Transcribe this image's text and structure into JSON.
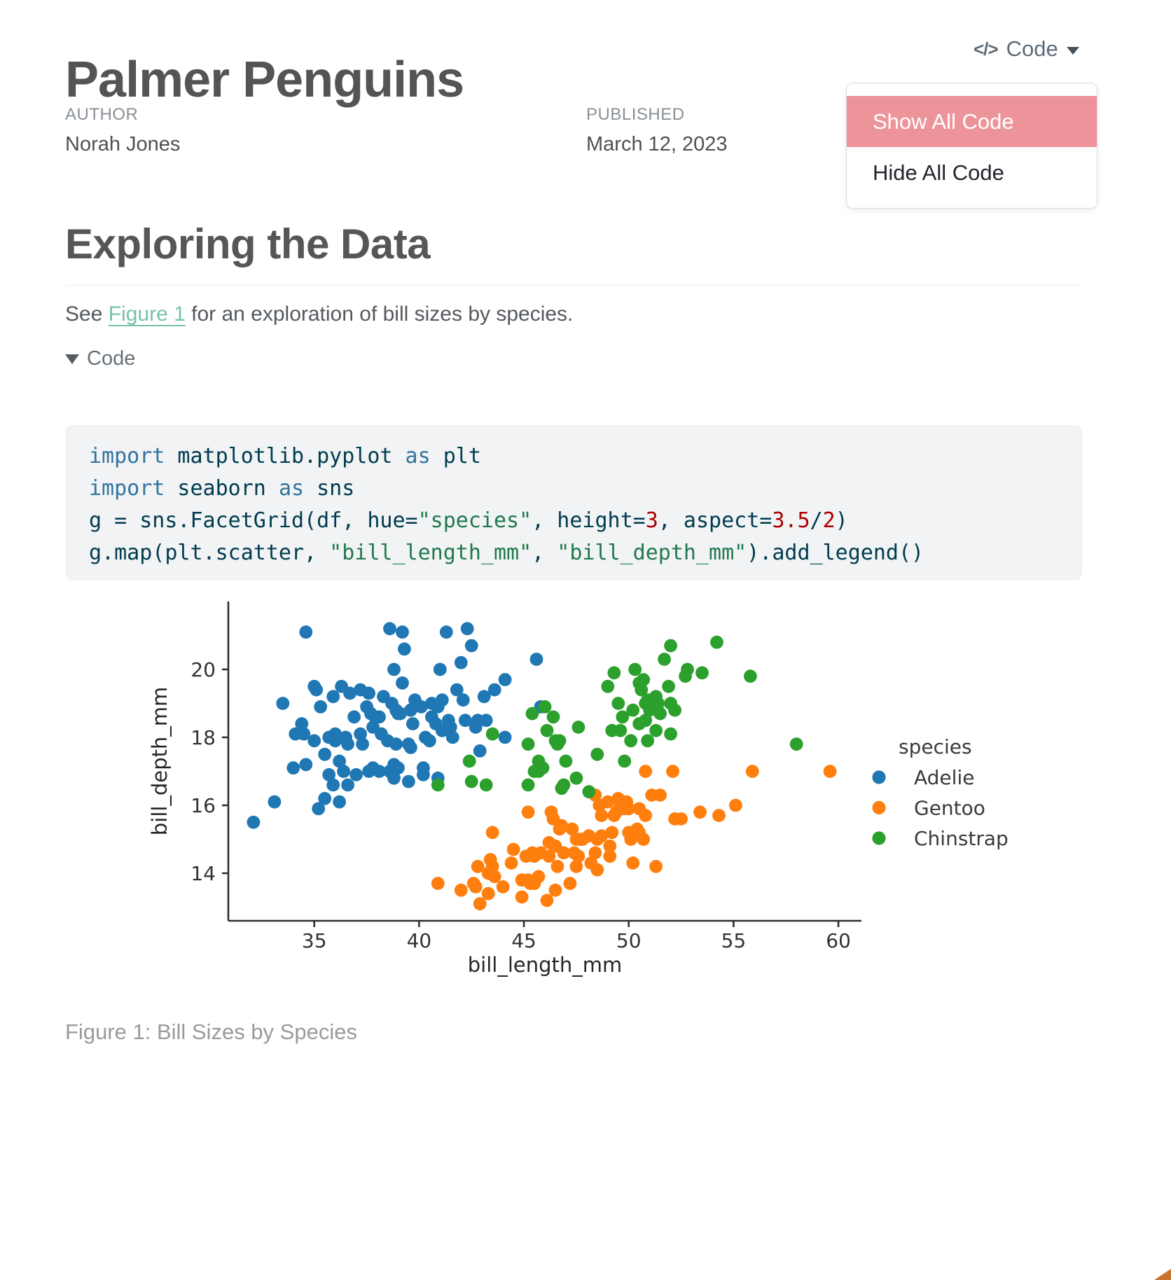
{
  "header": {
    "title": "Palmer Penguins",
    "code_menu": {
      "icon": "</>",
      "label": "Code",
      "items": [
        {
          "label": "Show All Code",
          "active": true
        },
        {
          "label": "Hide All Code",
          "active": false
        }
      ]
    },
    "meta": [
      {
        "label": "AUTHOR",
        "value": "Norah Jones"
      },
      {
        "label": "PUBLISHED",
        "value": "March 12, 2023"
      }
    ]
  },
  "section": {
    "heading": "Exploring the Data"
  },
  "paragraph": {
    "pre": "See ",
    "link": "Figure 1",
    "post": " for an exploration of bill sizes by species."
  },
  "code_fold": {
    "label": "Code"
  },
  "code_block": {
    "syntax": {
      "base": "#003B4F",
      "kw": "#33749F",
      "str": "#20794D",
      "num": "#AD0000"
    },
    "lines": [
      [
        {
          "t": "import",
          "c": "kw"
        },
        {
          "t": " matplotlib.pyplot ",
          "c": ""
        },
        {
          "t": "as",
          "c": "kw"
        },
        {
          "t": " plt",
          "c": ""
        }
      ],
      [
        {
          "t": "import",
          "c": "kw"
        },
        {
          "t": " seaborn ",
          "c": ""
        },
        {
          "t": "as",
          "c": "kw"
        },
        {
          "t": " sns",
          "c": ""
        }
      ],
      [
        {
          "t": "g = sns.FacetGrid(df, hue=",
          "c": ""
        },
        {
          "t": "\"species\"",
          "c": "str"
        },
        {
          "t": ", height=",
          "c": ""
        },
        {
          "t": "3",
          "c": "num"
        },
        {
          "t": ", aspect=",
          "c": ""
        },
        {
          "t": "3.5",
          "c": "num"
        },
        {
          "t": "/",
          "c": ""
        },
        {
          "t": "2",
          "c": "num"
        },
        {
          "t": ")",
          "c": ""
        }
      ],
      [
        {
          "t": "g.map(plt.scatter, ",
          "c": ""
        },
        {
          "t": "\"bill_length_mm\"",
          "c": "str"
        },
        {
          "t": ", ",
          "c": ""
        },
        {
          "t": "\"bill_depth_mm\"",
          "c": "str"
        },
        {
          "t": ").add_legend()",
          "c": ""
        }
      ]
    ]
  },
  "figure": {
    "caption": "Figure 1: Bill Sizes by Species"
  },
  "colors": {
    "link": "#78c2ad",
    "menu_item_active_bg": "#ED949A",
    "menu_item_active_text": "#ffffff",
    "code_block_bg": "#f1f3f4",
    "corner_graphic": "#c9742f",
    "adelie": "#1f77b4",
    "gentoo": "#ff7f0e",
    "chinstrap": "#2ca02c"
  },
  "chart_data": {
    "type": "scatter",
    "xlabel": "bill_length_mm",
    "ylabel": "bill_depth_mm",
    "xlim": [
      30.9,
      61.1
    ],
    "ylim": [
      12.6,
      22.0
    ],
    "xticks": [
      35,
      40,
      45,
      50,
      55,
      60
    ],
    "yticks": [
      14,
      16,
      18,
      20
    ],
    "grid": false,
    "legend_title": "species",
    "legend_position": "right",
    "series": [
      {
        "name": "Adelie",
        "color": "#1f77b4",
        "points": [
          [
            32.1,
            15.5
          ],
          [
            33.1,
            16.1
          ],
          [
            33.5,
            19.0
          ],
          [
            34.0,
            17.1
          ],
          [
            34.1,
            18.1
          ],
          [
            34.4,
            18.4
          ],
          [
            34.5,
            18.1
          ],
          [
            34.6,
            21.1
          ],
          [
            34.6,
            17.2
          ],
          [
            35.0,
            19.5
          ],
          [
            35.0,
            17.9
          ],
          [
            35.1,
            19.4
          ],
          [
            35.2,
            15.9
          ],
          [
            35.3,
            18.9
          ],
          [
            35.5,
            16.2
          ],
          [
            35.5,
            17.5
          ],
          [
            35.7,
            18.0
          ],
          [
            35.7,
            16.9
          ],
          [
            35.9,
            16.6
          ],
          [
            35.9,
            19.2
          ],
          [
            36.0,
            17.9
          ],
          [
            36.0,
            18.1
          ],
          [
            36.2,
            16.1
          ],
          [
            36.2,
            17.3
          ],
          [
            36.3,
            19.5
          ],
          [
            36.4,
            17.0
          ],
          [
            36.5,
            18.0
          ],
          [
            36.6,
            17.8
          ],
          [
            36.7,
            19.3
          ],
          [
            36.9,
            18.6
          ],
          [
            37.0,
            16.9
          ],
          [
            37.2,
            18.1
          ],
          [
            37.2,
            19.4
          ],
          [
            37.3,
            17.8
          ],
          [
            37.5,
            18.9
          ],
          [
            37.6,
            19.3
          ],
          [
            37.7,
            18.7
          ],
          [
            37.8,
            17.1
          ],
          [
            37.8,
            18.3
          ],
          [
            37.9,
            18.6
          ],
          [
            38.1,
            18.6
          ],
          [
            38.1,
            17.0
          ],
          [
            38.2,
            18.1
          ],
          [
            38.3,
            19.2
          ],
          [
            38.5,
            17.9
          ],
          [
            38.6,
            21.2
          ],
          [
            38.6,
            17.0
          ],
          [
            38.7,
            19.0
          ],
          [
            38.8,
            17.2
          ],
          [
            38.8,
            20.0
          ],
          [
            38.9,
            17.8
          ],
          [
            38.9,
            18.8
          ],
          [
            39.0,
            18.7
          ],
          [
            39.0,
            17.1
          ],
          [
            39.1,
            18.7
          ],
          [
            39.2,
            19.6
          ],
          [
            39.2,
            21.1
          ],
          [
            39.3,
            20.6
          ],
          [
            39.5,
            16.7
          ],
          [
            39.5,
            17.8
          ],
          [
            39.6,
            17.7
          ],
          [
            39.6,
            18.8
          ],
          [
            39.7,
            18.4
          ],
          [
            39.8,
            19.1
          ],
          [
            40.1,
            18.9
          ],
          [
            40.2,
            17.1
          ],
          [
            40.3,
            18.0
          ],
          [
            40.5,
            17.9
          ],
          [
            40.6,
            18.6
          ],
          [
            40.6,
            19.0
          ],
          [
            40.8,
            18.4
          ],
          [
            40.9,
            16.8
          ],
          [
            40.9,
            18.9
          ],
          [
            41.0,
            20.0
          ],
          [
            41.1,
            18.2
          ],
          [
            41.1,
            19.1
          ],
          [
            41.3,
            21.1
          ],
          [
            41.4,
            18.5
          ],
          [
            41.5,
            18.3
          ],
          [
            41.6,
            18.0
          ],
          [
            41.8,
            19.4
          ],
          [
            42.0,
            20.2
          ],
          [
            42.1,
            19.1
          ],
          [
            42.2,
            18.5
          ],
          [
            42.3,
            21.2
          ],
          [
            42.5,
            20.7
          ],
          [
            42.7,
            18.3
          ],
          [
            42.8,
            18.5
          ],
          [
            42.9,
            17.6
          ],
          [
            43.1,
            19.2
          ],
          [
            43.2,
            18.5
          ],
          [
            43.6,
            19.4
          ],
          [
            44.1,
            19.7
          ],
          [
            44.1,
            18.0
          ],
          [
            45.6,
            20.3
          ],
          [
            45.8,
            18.9
          ],
          [
            36.6,
            16.6
          ],
          [
            37.6,
            17.0
          ],
          [
            38.8,
            16.8
          ],
          [
            40.2,
            16.9
          ]
        ]
      },
      {
        "name": "Gentoo",
        "color": "#ff7f0e",
        "points": [
          [
            40.9,
            13.7
          ],
          [
            42.0,
            13.5
          ],
          [
            42.6,
            13.7
          ],
          [
            42.7,
            13.6
          ],
          [
            42.8,
            14.2
          ],
          [
            42.9,
            13.1
          ],
          [
            43.3,
            13.4
          ],
          [
            43.3,
            14.0
          ],
          [
            43.4,
            14.4
          ],
          [
            43.5,
            14.2
          ],
          [
            43.5,
            15.2
          ],
          [
            43.6,
            13.9
          ],
          [
            44.0,
            13.6
          ],
          [
            44.4,
            14.3
          ],
          [
            44.5,
            14.7
          ],
          [
            44.9,
            13.3
          ],
          [
            44.9,
            13.8
          ],
          [
            45.1,
            14.5
          ],
          [
            45.2,
            15.8
          ],
          [
            45.2,
            13.8
          ],
          [
            45.3,
            13.7
          ],
          [
            45.4,
            14.6
          ],
          [
            45.5,
            14.5
          ],
          [
            45.5,
            13.7
          ],
          [
            45.7,
            13.9
          ],
          [
            45.8,
            14.6
          ],
          [
            46.1,
            13.2
          ],
          [
            46.2,
            14.5
          ],
          [
            46.2,
            14.9
          ],
          [
            46.3,
            15.8
          ],
          [
            46.4,
            15.6
          ],
          [
            46.5,
            13.5
          ],
          [
            46.5,
            14.8
          ],
          [
            46.6,
            14.2
          ],
          [
            46.7,
            15.3
          ],
          [
            46.8,
            15.4
          ],
          [
            46.9,
            14.6
          ],
          [
            47.2,
            13.7
          ],
          [
            47.3,
            15.3
          ],
          [
            47.4,
            14.6
          ],
          [
            47.5,
            14.2
          ],
          [
            47.5,
            15.0
          ],
          [
            47.6,
            14.5
          ],
          [
            47.7,
            15.0
          ],
          [
            47.8,
            15.0
          ],
          [
            48.1,
            15.1
          ],
          [
            48.2,
            14.3
          ],
          [
            48.4,
            14.6
          ],
          [
            48.4,
            16.3
          ],
          [
            48.5,
            14.1
          ],
          [
            48.5,
            15.0
          ],
          [
            48.6,
            16.0
          ],
          [
            48.7,
            15.1
          ],
          [
            48.7,
            15.7
          ],
          [
            49.0,
            16.1
          ],
          [
            49.1,
            14.8
          ],
          [
            49.1,
            14.5
          ],
          [
            49.2,
            15.2
          ],
          [
            49.3,
            15.7
          ],
          [
            49.4,
            15.8
          ],
          [
            49.5,
            16.2
          ],
          [
            49.6,
            16.0
          ],
          [
            49.8,
            15.9
          ],
          [
            49.9,
            16.1
          ],
          [
            50.0,
            15.2
          ],
          [
            50.0,
            15.9
          ],
          [
            50.1,
            15.0
          ],
          [
            50.2,
            14.3
          ],
          [
            50.4,
            15.3
          ],
          [
            50.5,
            15.9
          ],
          [
            50.5,
            15.2
          ],
          [
            50.7,
            15.0
          ],
          [
            50.8,
            15.7
          ],
          [
            50.8,
            17.0
          ],
          [
            51.1,
            16.3
          ],
          [
            51.3,
            14.2
          ],
          [
            51.5,
            16.3
          ],
          [
            52.1,
            17.0
          ],
          [
            52.2,
            15.6
          ],
          [
            52.5,
            15.6
          ],
          [
            53.4,
            15.8
          ],
          [
            54.3,
            15.7
          ],
          [
            55.1,
            16.0
          ],
          [
            55.9,
            17.0
          ],
          [
            59.6,
            17.0
          ]
        ]
      },
      {
        "name": "Chinstrap",
        "color": "#2ca02c",
        "points": [
          [
            40.9,
            16.6
          ],
          [
            42.4,
            17.3
          ],
          [
            42.5,
            16.7
          ],
          [
            43.2,
            16.6
          ],
          [
            43.5,
            18.1
          ],
          [
            45.2,
            16.6
          ],
          [
            45.2,
            17.8
          ],
          [
            45.4,
            18.7
          ],
          [
            45.5,
            17.0
          ],
          [
            45.7,
            17.3
          ],
          [
            45.7,
            17.0
          ],
          [
            45.9,
            17.1
          ],
          [
            46.0,
            18.9
          ],
          [
            46.1,
            18.2
          ],
          [
            46.4,
            18.6
          ],
          [
            46.5,
            17.9
          ],
          [
            46.6,
            17.8
          ],
          [
            46.7,
            17.9
          ],
          [
            46.8,
            16.5
          ],
          [
            46.9,
            16.6
          ],
          [
            47.0,
            17.3
          ],
          [
            47.5,
            16.8
          ],
          [
            47.6,
            18.3
          ],
          [
            48.1,
            16.4
          ],
          [
            48.5,
            17.5
          ],
          [
            49.0,
            19.5
          ],
          [
            49.2,
            18.2
          ],
          [
            49.3,
            19.9
          ],
          [
            49.5,
            19.0
          ],
          [
            49.6,
            18.2
          ],
          [
            49.7,
            18.6
          ],
          [
            49.8,
            17.3
          ],
          [
            50.1,
            17.9
          ],
          [
            50.2,
            18.8
          ],
          [
            50.3,
            20.0
          ],
          [
            50.5,
            18.4
          ],
          [
            50.5,
            19.6
          ],
          [
            50.6,
            19.4
          ],
          [
            50.7,
            19.7
          ],
          [
            50.8,
            18.5
          ],
          [
            50.8,
            19.0
          ],
          [
            50.9,
            17.9
          ],
          [
            50.9,
            19.1
          ],
          [
            51.0,
            18.8
          ],
          [
            51.3,
            19.2
          ],
          [
            51.3,
            18.2
          ],
          [
            51.4,
            19.0
          ],
          [
            51.5,
            18.7
          ],
          [
            51.7,
            20.3
          ],
          [
            51.9,
            19.5
          ],
          [
            52.0,
            18.1
          ],
          [
            52.0,
            19.0
          ],
          [
            52.0,
            20.7
          ],
          [
            52.2,
            18.8
          ],
          [
            52.7,
            19.8
          ],
          [
            52.8,
            20.0
          ],
          [
            53.5,
            19.9
          ],
          [
            54.2,
            20.8
          ],
          [
            55.8,
            19.8
          ],
          [
            58.0,
            17.8
          ]
        ]
      }
    ]
  }
}
